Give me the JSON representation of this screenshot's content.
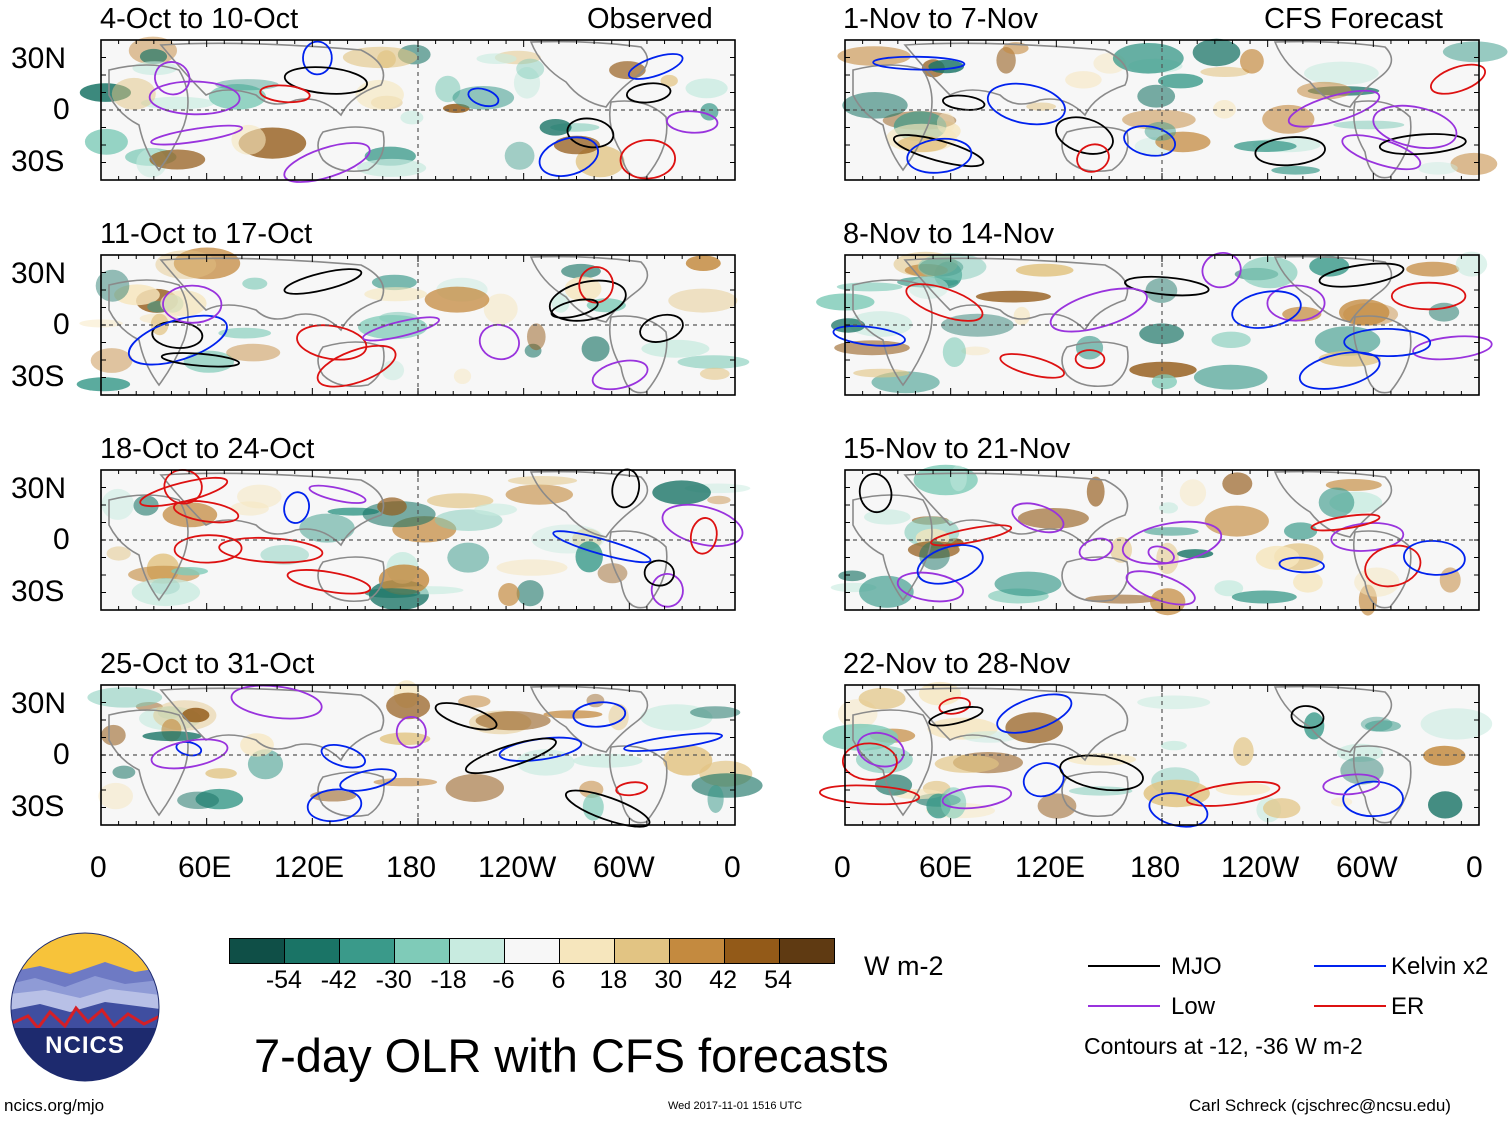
{
  "title": "7-day OLR with CFS forecasts",
  "units": "W m-2",
  "footer": {
    "url": "ncics.org/mjo",
    "timestamp": "Wed 2017-11-01 1516 UTC",
    "credit": "Carl Schreck (cjschrec@ncsu.edu)"
  },
  "logo": {
    "text": "NCICS"
  },
  "headers": {
    "observed": "Observed",
    "forecast": "CFS Forecast"
  },
  "lat_labels": [
    "30N",
    "0",
    "30S"
  ],
  "lon_labels": [
    "0",
    "60E",
    "120E",
    "180",
    "120W",
    "60W",
    "0"
  ],
  "panels": {
    "observed": [
      {
        "period": "4-Oct to 10-Oct"
      },
      {
        "period": "11-Oct to 17-Oct"
      },
      {
        "period": "18-Oct to 24-Oct"
      },
      {
        "period": "25-Oct to 31-Oct"
      }
    ],
    "forecast": [
      {
        "period": "1-Nov to 7-Nov"
      },
      {
        "period": "8-Nov to 14-Nov"
      },
      {
        "period": "15-Nov to 21-Nov"
      },
      {
        "period": "22-Nov to 28-Nov"
      }
    ]
  },
  "colorbar": {
    "colors": [
      "#0f4f47",
      "#1a7466",
      "#3a9a8a",
      "#7fcbb8",
      "#c8ebe0",
      "#f7f7f7",
      "#f6e6bd",
      "#e2c483",
      "#c48a3f",
      "#935a18",
      "#5f3a12"
    ],
    "labels": [
      "-54",
      "-42",
      "-30",
      "-18",
      "-6",
      "6",
      "18",
      "30",
      "42",
      "54"
    ]
  },
  "legend": {
    "items": [
      {
        "label": "MJO",
        "color": "#000000"
      },
      {
        "label": "Kelvin x2",
        "color": "#0022ee"
      },
      {
        "label": "Low",
        "color": "#9933dd"
      },
      {
        "label": "ER",
        "color": "#dd1111"
      }
    ],
    "note": "Contours at -12, -36 W m-2"
  }
}
